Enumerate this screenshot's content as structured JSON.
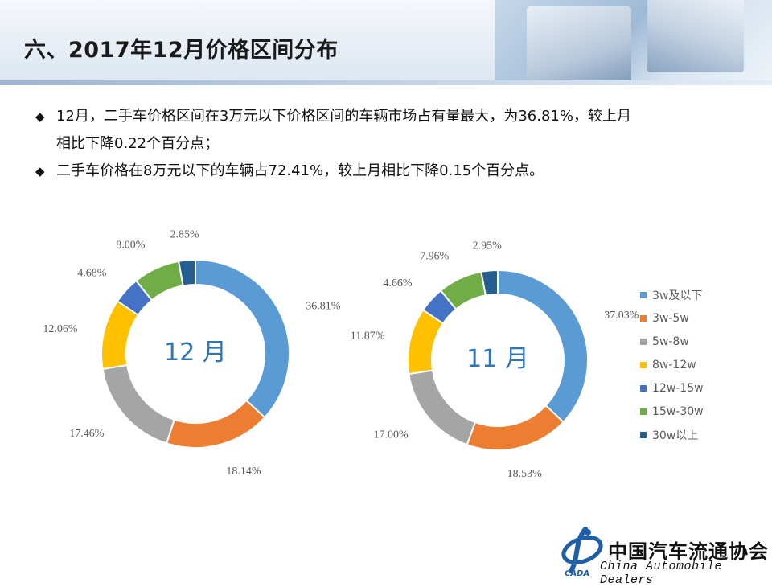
{
  "page": {
    "title": "六、2017年12月价格区间分布"
  },
  "bullets": [
    {
      "line1": "12月，二手车价格区间在3万元以下价格区间的车辆市场占有量最大，为36.81%，较上月",
      "line2": "相比下降0.22个百分点；"
    },
    {
      "line1": "二手车价格在8万元以下的车辆占72.41%，较上月相比下降0.15个百分点。"
    }
  ],
  "bullet_icon": "diamond-bullet-icon",
  "colors": [
    "#5b9bd5",
    "#ed7d31",
    "#a5a5a5",
    "#ffc000",
    "#4472c4",
    "#70ad47",
    "#255e91"
  ],
  "chart_data": [
    {
      "type": "pie",
      "variant": "donut",
      "center_label": "12 月",
      "categories": [
        "3w及以下",
        "3w-5w",
        "5w-8w",
        "8w-12w",
        "12w-15w",
        "15w-30w",
        "30w以上"
      ],
      "values": [
        36.81,
        18.14,
        17.46,
        12.06,
        4.68,
        8.0,
        2.85
      ],
      "labels": [
        "36.81%",
        "18.14%",
        "17.46%",
        "12.06%",
        "4.68%",
        "8.00%",
        "2.85%"
      ]
    },
    {
      "type": "pie",
      "variant": "donut",
      "center_label": "11 月",
      "categories": [
        "3w及以下",
        "3w-5w",
        "5w-8w",
        "8w-12w",
        "12w-15w",
        "15w-30w",
        "30w以上"
      ],
      "values": [
        37.03,
        18.53,
        17.0,
        11.87,
        4.66,
        7.96,
        2.95
      ],
      "labels": [
        "37.03%",
        "18.53%",
        "17.00%",
        "11.87%",
        "4.66%",
        "7.96%",
        "2.95%"
      ],
      "legend": {
        "position": "right"
      }
    }
  ],
  "logo": {
    "cn": "中国汽车流通协会",
    "en": "China Automobile Dealers",
    "mark": "CADA",
    "icon": "cada-logo-icon"
  }
}
